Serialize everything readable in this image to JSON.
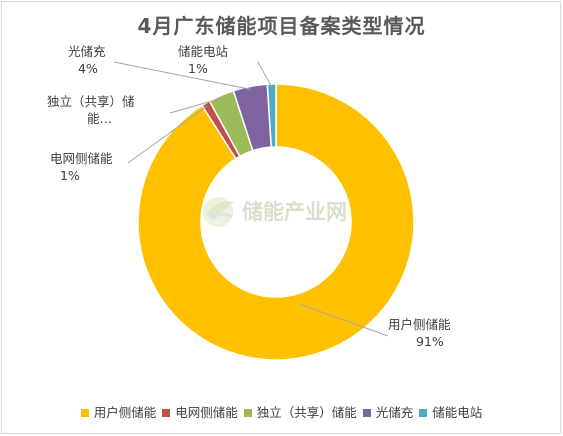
{
  "chart_data": {
    "type": "pie",
    "donut": true,
    "title": "4月广东储能项目备案类型情况",
    "slices": [
      {
        "name": "用户侧储能",
        "value": 91,
        "color": "#ffc000",
        "label_name": "用户侧储能",
        "label_pct": "91%"
      },
      {
        "name": "电网侧储能",
        "value": 1,
        "color": "#c0504d",
        "label_name": "电网侧储能",
        "label_pct": "1%"
      },
      {
        "name": "独立（共享）储能",
        "value": 3,
        "color": "#9bbb59",
        "label_name": "独立（共享）储",
        "label_pct": "能…"
      },
      {
        "name": "光储充",
        "value": 4,
        "color": "#8064a2",
        "label_name": "光储充",
        "label_pct": "4%"
      },
      {
        "name": "储能电站",
        "value": 1,
        "color": "#4bacc6",
        "label_name": "储能电站",
        "label_pct": "1%"
      }
    ],
    "legend_position": "bottom"
  },
  "watermark": {
    "text": "储能产业网"
  }
}
